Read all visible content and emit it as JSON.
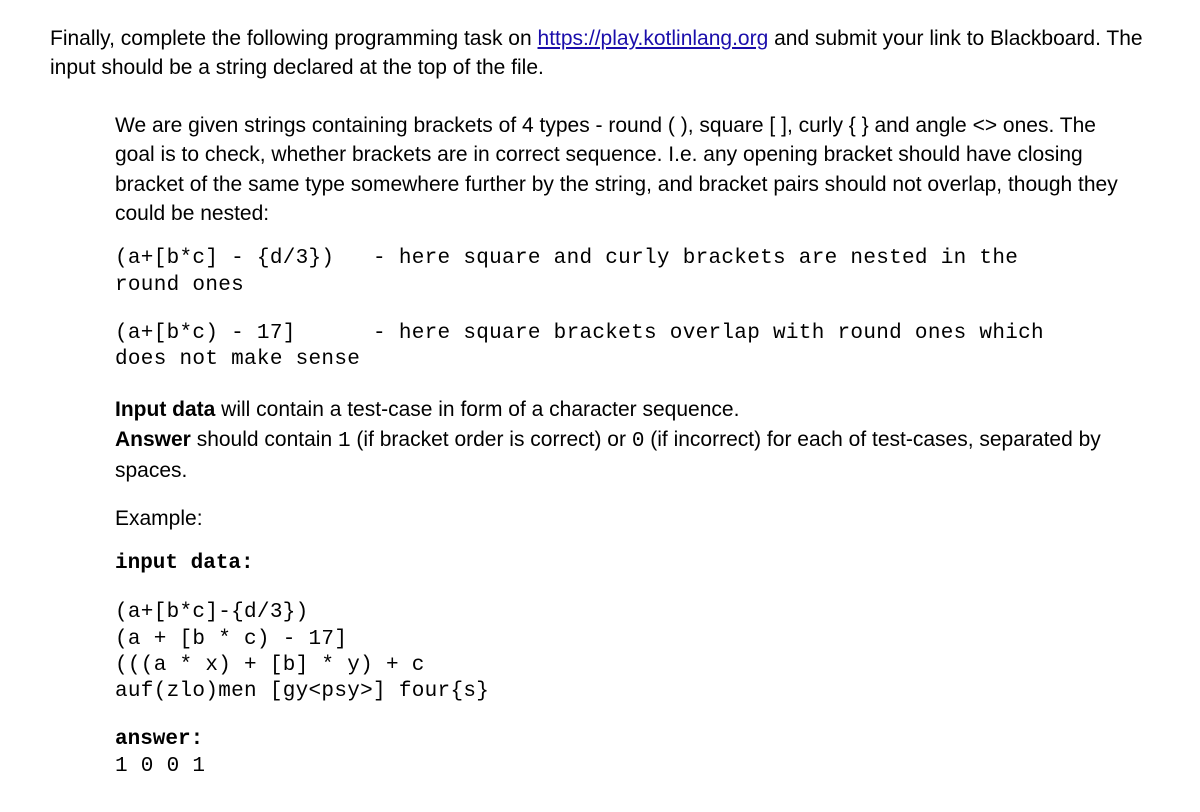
{
  "intro": {
    "prefix": "Finally, complete the following programming task on ",
    "link_text": "https://play.kotlinlang.org",
    "link_href": "https://play.kotlinlang.org",
    "suffix": " and submit your link to Blackboard. The input should be a string declared at the top of the file."
  },
  "problem": {
    "description": "We are given strings containing brackets of 4 types - round ( ), square [ ], curly { } and angle <> ones. The goal is to check, whether brackets are in correct sequence. I.e. any opening bracket should have closing bracket of the same type somewhere further by the string, and bracket pairs should not overlap, though they could be nested:",
    "example1": "(a+[b*c] - {d/3})   - here square and curly brackets are nested in the\nround ones",
    "example2": "(a+[b*c) - 17]      - here square brackets overlap with round ones which\ndoes not make sense",
    "input_bold": "Input data",
    "input_rest": " will contain a test-case in form of a character sequence.",
    "answer_bold": "Answer",
    "answer_rest_part1": " should contain ",
    "one": "1",
    "answer_rest_part2": " (if bracket order is correct) or ",
    "zero": "0",
    "answer_rest_part3": " (if incorrect) for each of test-cases, separated by spaces.",
    "example_label": "Example:",
    "input_data_label": "input data:",
    "input_data": "(a+[b*c]-{d/3})\n(a + [b * c) - 17]\n(((a * x) + [b] * y) + c\nauf(zlo)men [gy<psy>] four{s}",
    "answer_label": "answer:",
    "answer_data": "1 0 0 1"
  }
}
